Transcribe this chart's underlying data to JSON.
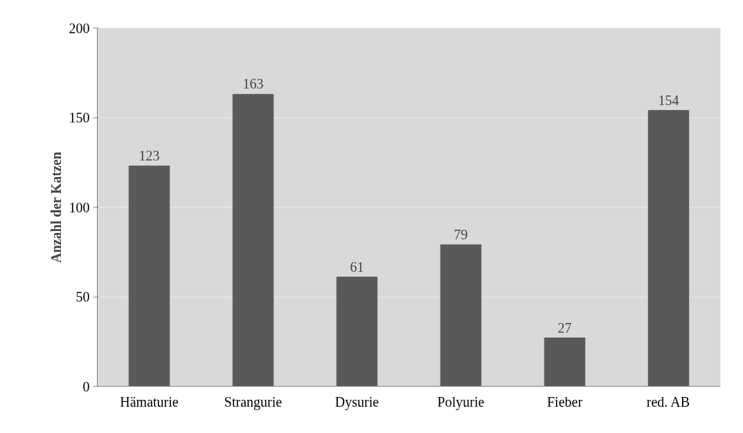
{
  "chart_data": {
    "type": "bar",
    "ylabel": "Anzahl der Katzen",
    "categories": [
      "Hämaturie",
      "Strangurie",
      "Dysurie",
      "Polyurie",
      "Fieber",
      "red. AB"
    ],
    "values": [
      123,
      163,
      61,
      79,
      27,
      154
    ],
    "color": "#595959",
    "ylim": [
      0,
      200
    ],
    "yticks": [
      0,
      50,
      100,
      150,
      200
    ],
    "grid": "y",
    "data_labels": true
  }
}
